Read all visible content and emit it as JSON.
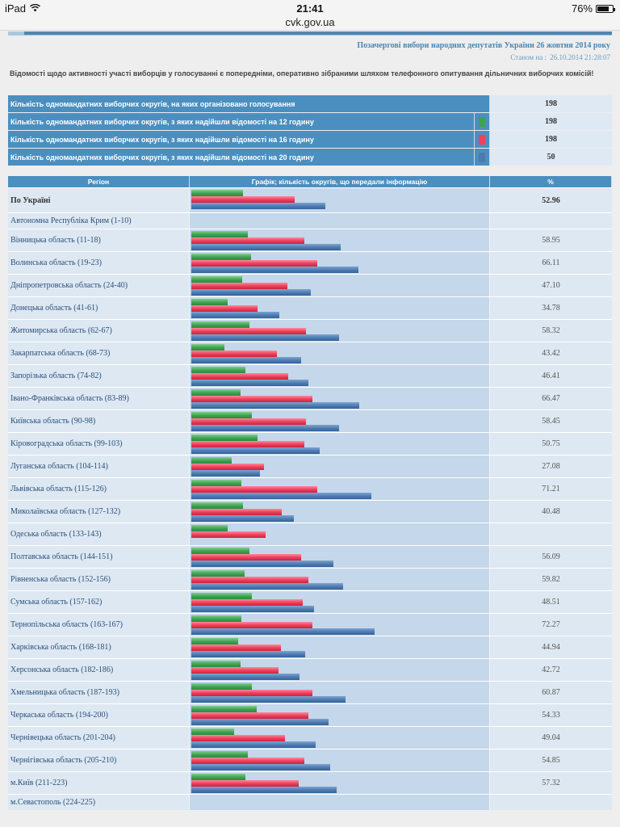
{
  "status_bar": {
    "device": "iPad",
    "time": "21:41",
    "battery": "76%",
    "battery_level": 0.76,
    "url": "cvk.gov.ua"
  },
  "header": {
    "election_title": "Позачергові вибори народних депутатів України 26 жовтня 2014 року",
    "as_of_label": "Станом на :",
    "as_of_value": "26.10.2014 21:28:07"
  },
  "notice": "Відомості щодо активності участі виборців у голосуванні є попередніми, оперативно зібраними шляхом телефонного опитування дільничних виборчих комісій!",
  "summary": [
    {
      "label": "Кількість одномандатних виборчих округів, на яких організовано голосування",
      "value": "198",
      "swatch": null
    },
    {
      "label": "Кількість одномандатних виборчих округів, з яких надійшли відомості на 12 годину",
      "value": "198",
      "swatch": "#3fa153"
    },
    {
      "label": "Кількість одномандатних виборчих округів, з яких надійшли відомості на 16 годину",
      "value": "198",
      "swatch": "#f0405c"
    },
    {
      "label": "Кількість одномандатних виборчих округів, з яких надійшли відомості на 20 годину",
      "value": "50",
      "swatch": "#4d7ab0"
    }
  ],
  "table": {
    "headers": {
      "region": "Регіон",
      "chart": "Графік; кількість округів, що передали інформацію",
      "pct": "%"
    }
  },
  "chart_data": {
    "type": "bar",
    "orientation": "horizontal",
    "title": "Графік; кількість округів, що передали інформацію",
    "xlabel": "%",
    "xlim": [
      0,
      100
    ],
    "series": [
      {
        "name": "12:00",
        "color": "#3fa153"
      },
      {
        "name": "16:00",
        "color": "#f0405c"
      },
      {
        "name": "20:00",
        "color": "#4d7ab0"
      }
    ],
    "rows": [
      {
        "region": "По Україні",
        "bold": true,
        "g": 20.3,
        "r": 40.7,
        "b": 52.96,
        "pct": "52.96"
      },
      {
        "region": "Автономна Республіка Крим (1-10)",
        "g": null,
        "r": null,
        "b": null,
        "pct": ""
      },
      {
        "region": "Вінницька область (11-18)",
        "g": 22.2,
        "r": 44.7,
        "b": 58.95,
        "pct": "58.95"
      },
      {
        "region": "Волинська область (19-23)",
        "g": 23.5,
        "r": 49.9,
        "b": 66.11,
        "pct": "66.11"
      },
      {
        "region": "Дніпропетровська область (24-40)",
        "g": 20.1,
        "r": 37.9,
        "b": 47.1,
        "pct": "47.10"
      },
      {
        "region": "Донецька область (41-61)",
        "g": 14.3,
        "r": 26.1,
        "b": 34.78,
        "pct": "34.78"
      },
      {
        "region": "Житомирська область (62-67)",
        "g": 22.9,
        "r": 45.4,
        "b": 58.32,
        "pct": "58.32"
      },
      {
        "region": "Закарпатська область (68-73)",
        "g": 13.0,
        "r": 33.7,
        "b": 43.42,
        "pct": "43.42"
      },
      {
        "region": "Запорізька область (74-82)",
        "g": 21.5,
        "r": 38.3,
        "b": 46.41,
        "pct": "46.41"
      },
      {
        "region": "Івано-Франківська область (83-89)",
        "g": 19.4,
        "r": 48.0,
        "b": 66.47,
        "pct": "66.47"
      },
      {
        "region": "Київська область (90-98)",
        "g": 23.9,
        "r": 45.4,
        "b": 58.45,
        "pct": "58.45"
      },
      {
        "region": "Кіровоградська область (99-103)",
        "g": 26.3,
        "r": 44.6,
        "b": 50.75,
        "pct": "50.75"
      },
      {
        "region": "Луганська область (104-114)",
        "g": 15.9,
        "r": 28.6,
        "b": 27.08,
        "pct": "27.08"
      },
      {
        "region": "Львівська область (115-126)",
        "g": 19.8,
        "r": 49.8,
        "b": 71.21,
        "pct": "71.21"
      },
      {
        "region": "Миколаївська область (127-132)",
        "g": 20.3,
        "r": 35.7,
        "b": 40.48,
        "pct": "40.48"
      },
      {
        "region": "Одеська область (133-143)",
        "g": 14.5,
        "r": 29.5,
        "b": null,
        "pct": ""
      },
      {
        "region": "Полтавська область (144-151)",
        "g": 22.9,
        "r": 43.5,
        "b": 56.09,
        "pct": "56.09"
      },
      {
        "region": "Рівненська область (152-156)",
        "g": 21.2,
        "r": 46.4,
        "b": 59.82,
        "pct": "59.82"
      },
      {
        "region": "Сумська область (157-162)",
        "g": 23.8,
        "r": 44.1,
        "b": 48.51,
        "pct": "48.51"
      },
      {
        "region": "Тернопільська область (163-167)",
        "g": 19.8,
        "r": 47.7,
        "b": 72.27,
        "pct": "72.27"
      },
      {
        "region": "Харківська область (168-181)",
        "g": 18.6,
        "r": 35.4,
        "b": 44.94,
        "pct": "44.94"
      },
      {
        "region": "Херсонська область (182-186)",
        "g": 19.5,
        "r": 34.4,
        "b": 42.72,
        "pct": "42.72"
      },
      {
        "region": "Хмельницька область (187-193)",
        "g": 23.8,
        "r": 47.7,
        "b": 60.87,
        "pct": "60.87"
      },
      {
        "region": "Черкаська область (194-200)",
        "g": 25.7,
        "r": 46.1,
        "b": 54.33,
        "pct": "54.33"
      },
      {
        "region": "Чернівецька область (201-204)",
        "g": 16.8,
        "r": 37.0,
        "b": 49.04,
        "pct": "49.04"
      },
      {
        "region": "Чернігівська область (205-210)",
        "g": 22.2,
        "r": 44.8,
        "b": 54.85,
        "pct": "54.85"
      },
      {
        "region": "м.Київ (211-223)",
        "g": 21.3,
        "r": 42.3,
        "b": 57.32,
        "pct": "57.32"
      },
      {
        "region": "м.Севастополь (224-225)",
        "g": null,
        "r": null,
        "b": null,
        "pct": ""
      }
    ]
  }
}
